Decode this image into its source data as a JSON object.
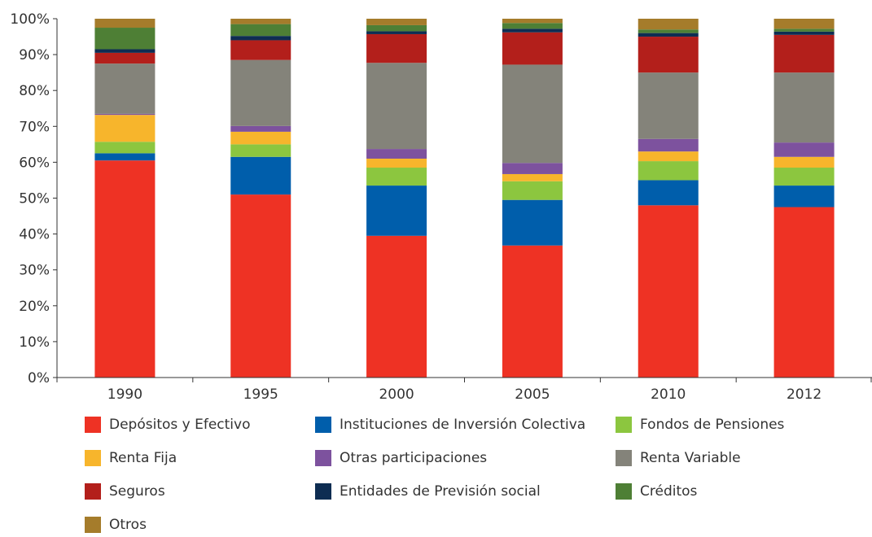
{
  "chart_data": {
    "type": "bar",
    "stacked": true,
    "categories": [
      "1990",
      "1995",
      "2000",
      "2005",
      "2010",
      "2012"
    ],
    "ylim": [
      0,
      100
    ],
    "yticks": [
      "0%",
      "10%",
      "20%",
      "30%",
      "40%",
      "50%",
      "60%",
      "70%",
      "80%",
      "90%",
      "100%"
    ],
    "grid": false,
    "legend_position": "bottom",
    "series": [
      {
        "name": "Depósitos y Efectivo",
        "color": "#ee3224",
        "values": [
          60.5,
          51.0,
          39.5,
          36.8,
          48.0,
          47.5
        ]
      },
      {
        "name": "Instituciones de Inversión Colectiva",
        "color": "#005eab",
        "values": [
          2.0,
          10.5,
          14.0,
          12.7,
          7.0,
          6.0
        ]
      },
      {
        "name": "Fondos de Pensiones",
        "color": "#8cc63f",
        "values": [
          3.2,
          3.5,
          5.0,
          5.2,
          5.3,
          5.0
        ]
      },
      {
        "name": "Renta Fija",
        "color": "#f7b52c",
        "values": [
          7.5,
          3.5,
          2.5,
          2.0,
          2.7,
          3.0
        ]
      },
      {
        "name": "Otras participaciones",
        "color": "#7d529e",
        "values": [
          0.3,
          1.6,
          2.7,
          3.1,
          3.5,
          4.0
        ]
      },
      {
        "name": "Renta Variable",
        "color": "#84837a",
        "values": [
          14.0,
          18.4,
          24.0,
          27.4,
          18.5,
          19.5
        ]
      },
      {
        "name": "Seguros",
        "color": "#b31f1b",
        "values": [
          3.0,
          5.5,
          8.0,
          9.0,
          10.0,
          10.5
        ]
      },
      {
        "name": "Entidades de Previsión social",
        "color": "#0e2d52",
        "values": [
          1.0,
          1.2,
          0.8,
          1.0,
          1.0,
          0.9
        ]
      },
      {
        "name": "Créditos",
        "color": "#4e7f35",
        "values": [
          6.0,
          3.3,
          1.7,
          1.6,
          1.0,
          0.8
        ]
      },
      {
        "name": "Otros",
        "color": "#a57c2b",
        "values": [
          2.5,
          1.5,
          1.8,
          1.2,
          3.0,
          2.8
        ]
      }
    ]
  }
}
